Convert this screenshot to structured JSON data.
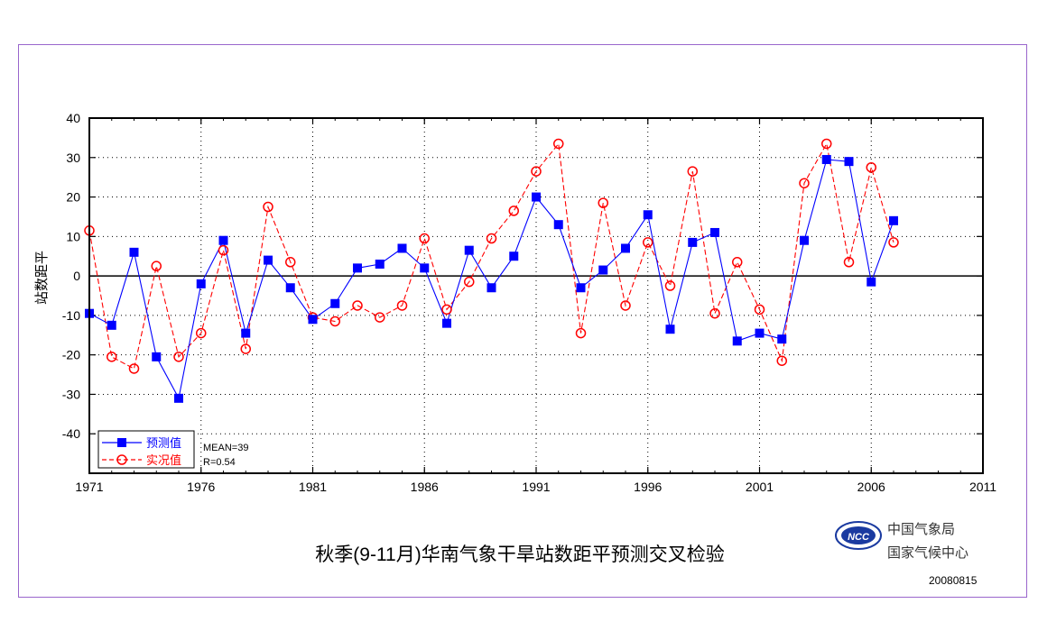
{
  "org": {
    "name_cn": "中国气象局",
    "center_cn": "国家气候中心",
    "logo_text": "NCC",
    "date": "20080815"
  },
  "colors": {
    "forecast": "#0000ff",
    "observed": "#ff0000",
    "frame": "#9966cc",
    "logo": "#1a3aa0"
  },
  "chart_data": {
    "type": "line",
    "title": "秋季(9-11月)华南气象干旱站数距平预测交叉检验",
    "xlabel": "",
    "ylabel": "站数距平",
    "xlim": [
      1971,
      2011
    ],
    "ylim": [
      -50,
      40
    ],
    "x_ticks": [
      1971,
      1976,
      1981,
      1986,
      1991,
      1996,
      2001,
      2006,
      2011
    ],
    "y_ticks": [
      40,
      30,
      20,
      10,
      0,
      -10,
      -20,
      -30,
      -40
    ],
    "x_minor_step": 1,
    "grid": true,
    "x": [
      1971,
      1972,
      1973,
      1974,
      1975,
      1976,
      1977,
      1978,
      1979,
      1980,
      1981,
      1982,
      1983,
      1984,
      1985,
      1986,
      1987,
      1988,
      1989,
      1990,
      1991,
      1992,
      1993,
      1994,
      1995,
      1996,
      1997,
      1998,
      1999,
      2000,
      2001,
      2002,
      2003,
      2004,
      2005,
      2006,
      2007
    ],
    "series": [
      {
        "name": "预测值",
        "style": "solid-square",
        "values": [
          -9.5,
          -12.5,
          6,
          -20.5,
          -31,
          -2,
          9,
          -14.5,
          4,
          -3,
          -11,
          -7,
          2,
          3,
          7,
          2,
          -12,
          6.5,
          -3,
          5,
          20,
          13,
          -3,
          1.5,
          7,
          15.5,
          -13.5,
          8.5,
          11,
          -16.5,
          -14.5,
          -16,
          9,
          29.5,
          29,
          -1.5,
          14
        ]
      },
      {
        "name": "实况值",
        "style": "dashed-circle",
        "values": [
          11.5,
          -20.5,
          -23.5,
          2.5,
          -20.5,
          -14.5,
          6.5,
          -18.5,
          17.5,
          3.5,
          -10.5,
          -11.5,
          -7.5,
          -10.5,
          -7.5,
          9.5,
          -8.5,
          -1.5,
          9.5,
          16.5,
          26.5,
          33.5,
          -14.5,
          18.5,
          -7.5,
          8.5,
          -2.5,
          26.5,
          -9.5,
          3.5,
          -8.5,
          -21.5,
          23.5,
          33.5,
          3.5,
          27.5,
          8.5
        ]
      }
    ],
    "annotations": [
      "MEAN=39",
      "R=0.54"
    ],
    "legend_position": "bottom-left"
  }
}
